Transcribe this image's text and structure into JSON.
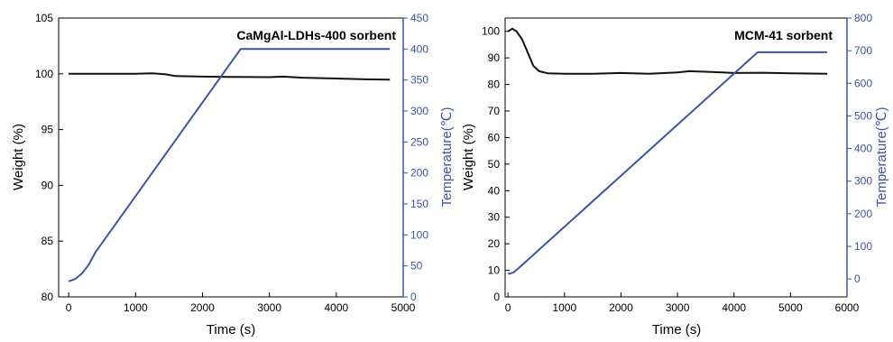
{
  "chart_data": [
    {
      "type": "line",
      "title": "CaMgAl-LDHs-400 sorbent",
      "xlabel": "Time (s)",
      "ylabel": "Weight (%)",
      "y2label": "Temperature(℃)",
      "xlim": [
        -150,
        5000
      ],
      "ylim": [
        80,
        105
      ],
      "y2lim": [
        0,
        450
      ],
      "xticks": [
        0,
        1000,
        2000,
        3000,
        4000,
        5000
      ],
      "yticks": [
        80,
        85,
        90,
        95,
        100,
        105
      ],
      "y2ticks": [
        0,
        50,
        100,
        150,
        200,
        250,
        300,
        350,
        400,
        450
      ],
      "grid": false,
      "series": [
        {
          "axis": "left",
          "color": "#111111",
          "x": [
            0,
            500,
            1000,
            1250,
            1450,
            1600,
            2000,
            2500,
            3000,
            3200,
            3500,
            4000,
            4500,
            4800
          ],
          "y": [
            100.0,
            100.0,
            100.0,
            100.05,
            99.95,
            99.8,
            99.75,
            99.72,
            99.7,
            99.75,
            99.65,
            99.58,
            99.5,
            99.48
          ]
        },
        {
          "axis": "right",
          "color": "#3b55a0",
          "x": [
            0,
            100,
            200,
            300,
            400,
            2570,
            4800
          ],
          "y": [
            25,
            29,
            38,
            52,
            72,
            400,
            400
          ]
        }
      ]
    },
    {
      "type": "line",
      "title": "MCM-41 sorbent",
      "xlabel": "Time (s)",
      "ylabel": "Weight (%)",
      "y2label": "Temperature(℃)",
      "xlim": [
        -50,
        6000
      ],
      "ylim": [
        0,
        105
      ],
      "y2lim": [
        -55,
        800
      ],
      "xticks": [
        0,
        1000,
        2000,
        3000,
        4000,
        5000,
        6000
      ],
      "yticks": [
        0,
        10,
        20,
        30,
        40,
        50,
        60,
        70,
        80,
        90,
        100
      ],
      "y2ticks": [
        0,
        100,
        200,
        300,
        400,
        500,
        600,
        700,
        800
      ],
      "grid": false,
      "series": [
        {
          "axis": "left",
          "color": "#111111",
          "x": [
            0,
            80,
            150,
            250,
            350,
            450,
            550,
            700,
            1000,
            1500,
            2000,
            2500,
            3000,
            3200,
            3600,
            4000,
            4500,
            5000,
            5650
          ],
          "y": [
            100,
            101,
            100,
            97,
            92,
            87,
            85,
            84.2,
            84,
            84,
            84.3,
            84,
            84.5,
            85,
            84.7,
            84.3,
            84.4,
            84.2,
            84
          ]
        },
        {
          "axis": "right",
          "color": "#3b55a0",
          "x": [
            0,
            100,
            200,
            4420,
            5650
          ],
          "y": [
            15,
            20,
            35,
            695,
            695
          ]
        }
      ]
    }
  ]
}
